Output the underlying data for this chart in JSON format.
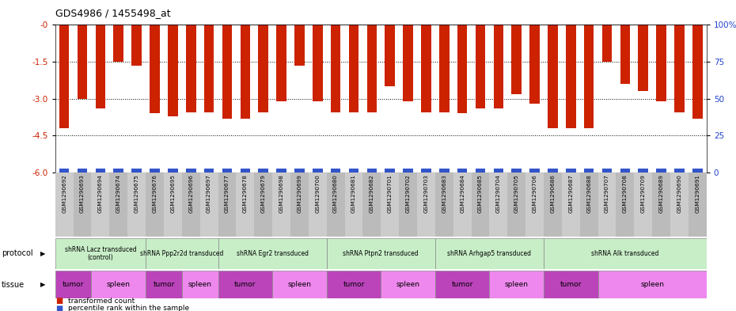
{
  "title": "GDS4986 / 1455498_at",
  "sample_ids": [
    "GSM1290692",
    "GSM1290693",
    "GSM1290694",
    "GSM1290674",
    "GSM1290675",
    "GSM1290676",
    "GSM1290695",
    "GSM1290696",
    "GSM1290697",
    "GSM1290677",
    "GSM1290678",
    "GSM1290679",
    "GSM1290698",
    "GSM1290699",
    "GSM1290700",
    "GSM1290680",
    "GSM1290681",
    "GSM1290682",
    "GSM1290701",
    "GSM1290702",
    "GSM1290703",
    "GSM1290683",
    "GSM1290684",
    "GSM1290685",
    "GSM1290704",
    "GSM1290705",
    "GSM1290706",
    "GSM1290686",
    "GSM1290687",
    "GSM1290688",
    "GSM1290707",
    "GSM1290708",
    "GSM1290709",
    "GSM1290689",
    "GSM1290690",
    "GSM1290691"
  ],
  "red_values": [
    -4.2,
    -3.0,
    -3.4,
    -1.5,
    -1.65,
    -3.6,
    -3.7,
    -3.55,
    -3.55,
    -3.8,
    -3.8,
    -3.55,
    -3.1,
    -1.65,
    -3.1,
    -3.55,
    -3.55,
    -3.55,
    -2.5,
    -3.1,
    -3.55,
    -3.55,
    -3.6,
    -3.4,
    -3.4,
    -2.8,
    -3.2,
    -4.2,
    -4.2,
    -4.2,
    -1.5,
    -2.4,
    -2.7,
    -3.1,
    -3.55,
    -3.8
  ],
  "blue_values_pct": [
    8,
    5,
    6,
    12,
    8,
    6,
    8,
    10,
    10,
    10,
    10,
    8,
    8,
    10,
    8,
    10,
    10,
    10,
    8,
    8,
    8,
    8,
    8,
    10,
    8,
    8,
    10,
    6,
    6,
    6,
    8,
    10,
    10,
    6,
    6,
    6
  ],
  "protocols": [
    {
      "label": "shRNA Lacz transduced\n(control)",
      "start": 0,
      "end": 5,
      "color": "#c8eec8"
    },
    {
      "label": "shRNA Ppp2r2d transduced",
      "start": 5,
      "end": 9,
      "color": "#c8eec8"
    },
    {
      "label": "shRNA Egr2 transduced",
      "start": 9,
      "end": 15,
      "color": "#c8eec8"
    },
    {
      "label": "shRNA Ptpn2 transduced",
      "start": 15,
      "end": 21,
      "color": "#c8eec8"
    },
    {
      "label": "shRNA Arhgap5 transduced",
      "start": 21,
      "end": 27,
      "color": "#c8eec8"
    },
    {
      "label": "shRNA Alk transduced",
      "start": 27,
      "end": 36,
      "color": "#c8eec8"
    }
  ],
  "tissues": [
    {
      "label": "tumor",
      "start": 0,
      "end": 2,
      "color": "#bb44bb"
    },
    {
      "label": "spleen",
      "start": 2,
      "end": 5,
      "color": "#ee88ee"
    },
    {
      "label": "tumor",
      "start": 5,
      "end": 7,
      "color": "#bb44bb"
    },
    {
      "label": "spleen",
      "start": 7,
      "end": 9,
      "color": "#ee88ee"
    },
    {
      "label": "tumor",
      "start": 9,
      "end": 12,
      "color": "#bb44bb"
    },
    {
      "label": "spleen",
      "start": 12,
      "end": 15,
      "color": "#ee88ee"
    },
    {
      "label": "tumor",
      "start": 15,
      "end": 18,
      "color": "#bb44bb"
    },
    {
      "label": "spleen",
      "start": 18,
      "end": 21,
      "color": "#ee88ee"
    },
    {
      "label": "tumor",
      "start": 21,
      "end": 24,
      "color": "#bb44bb"
    },
    {
      "label": "spleen",
      "start": 24,
      "end": 27,
      "color": "#ee88ee"
    },
    {
      "label": "tumor",
      "start": 27,
      "end": 30,
      "color": "#bb44bb"
    },
    {
      "label": "spleen",
      "start": 30,
      "end": 36,
      "color": "#ee88ee"
    }
  ],
  "ylim": [
    -6.0,
    0.0
  ],
  "y_ticks_left": [
    0.0,
    -1.5,
    -3.0,
    -4.5,
    -6.0
  ],
  "y_ticks_right": [
    0,
    25,
    50,
    75,
    100
  ],
  "right_axis_labels": [
    "0",
    "25",
    "50",
    "75",
    "100%"
  ],
  "bar_color": "#cc2200",
  "blue_color": "#3355cc",
  "background_color": "#ffffff",
  "title_color": "#000000",
  "protocol_label": "protocol",
  "tissue_label": "tissue",
  "legend_red": "transformed count",
  "legend_blue": "percentile rank within the sample",
  "tick_bg_color": "#cccccc"
}
